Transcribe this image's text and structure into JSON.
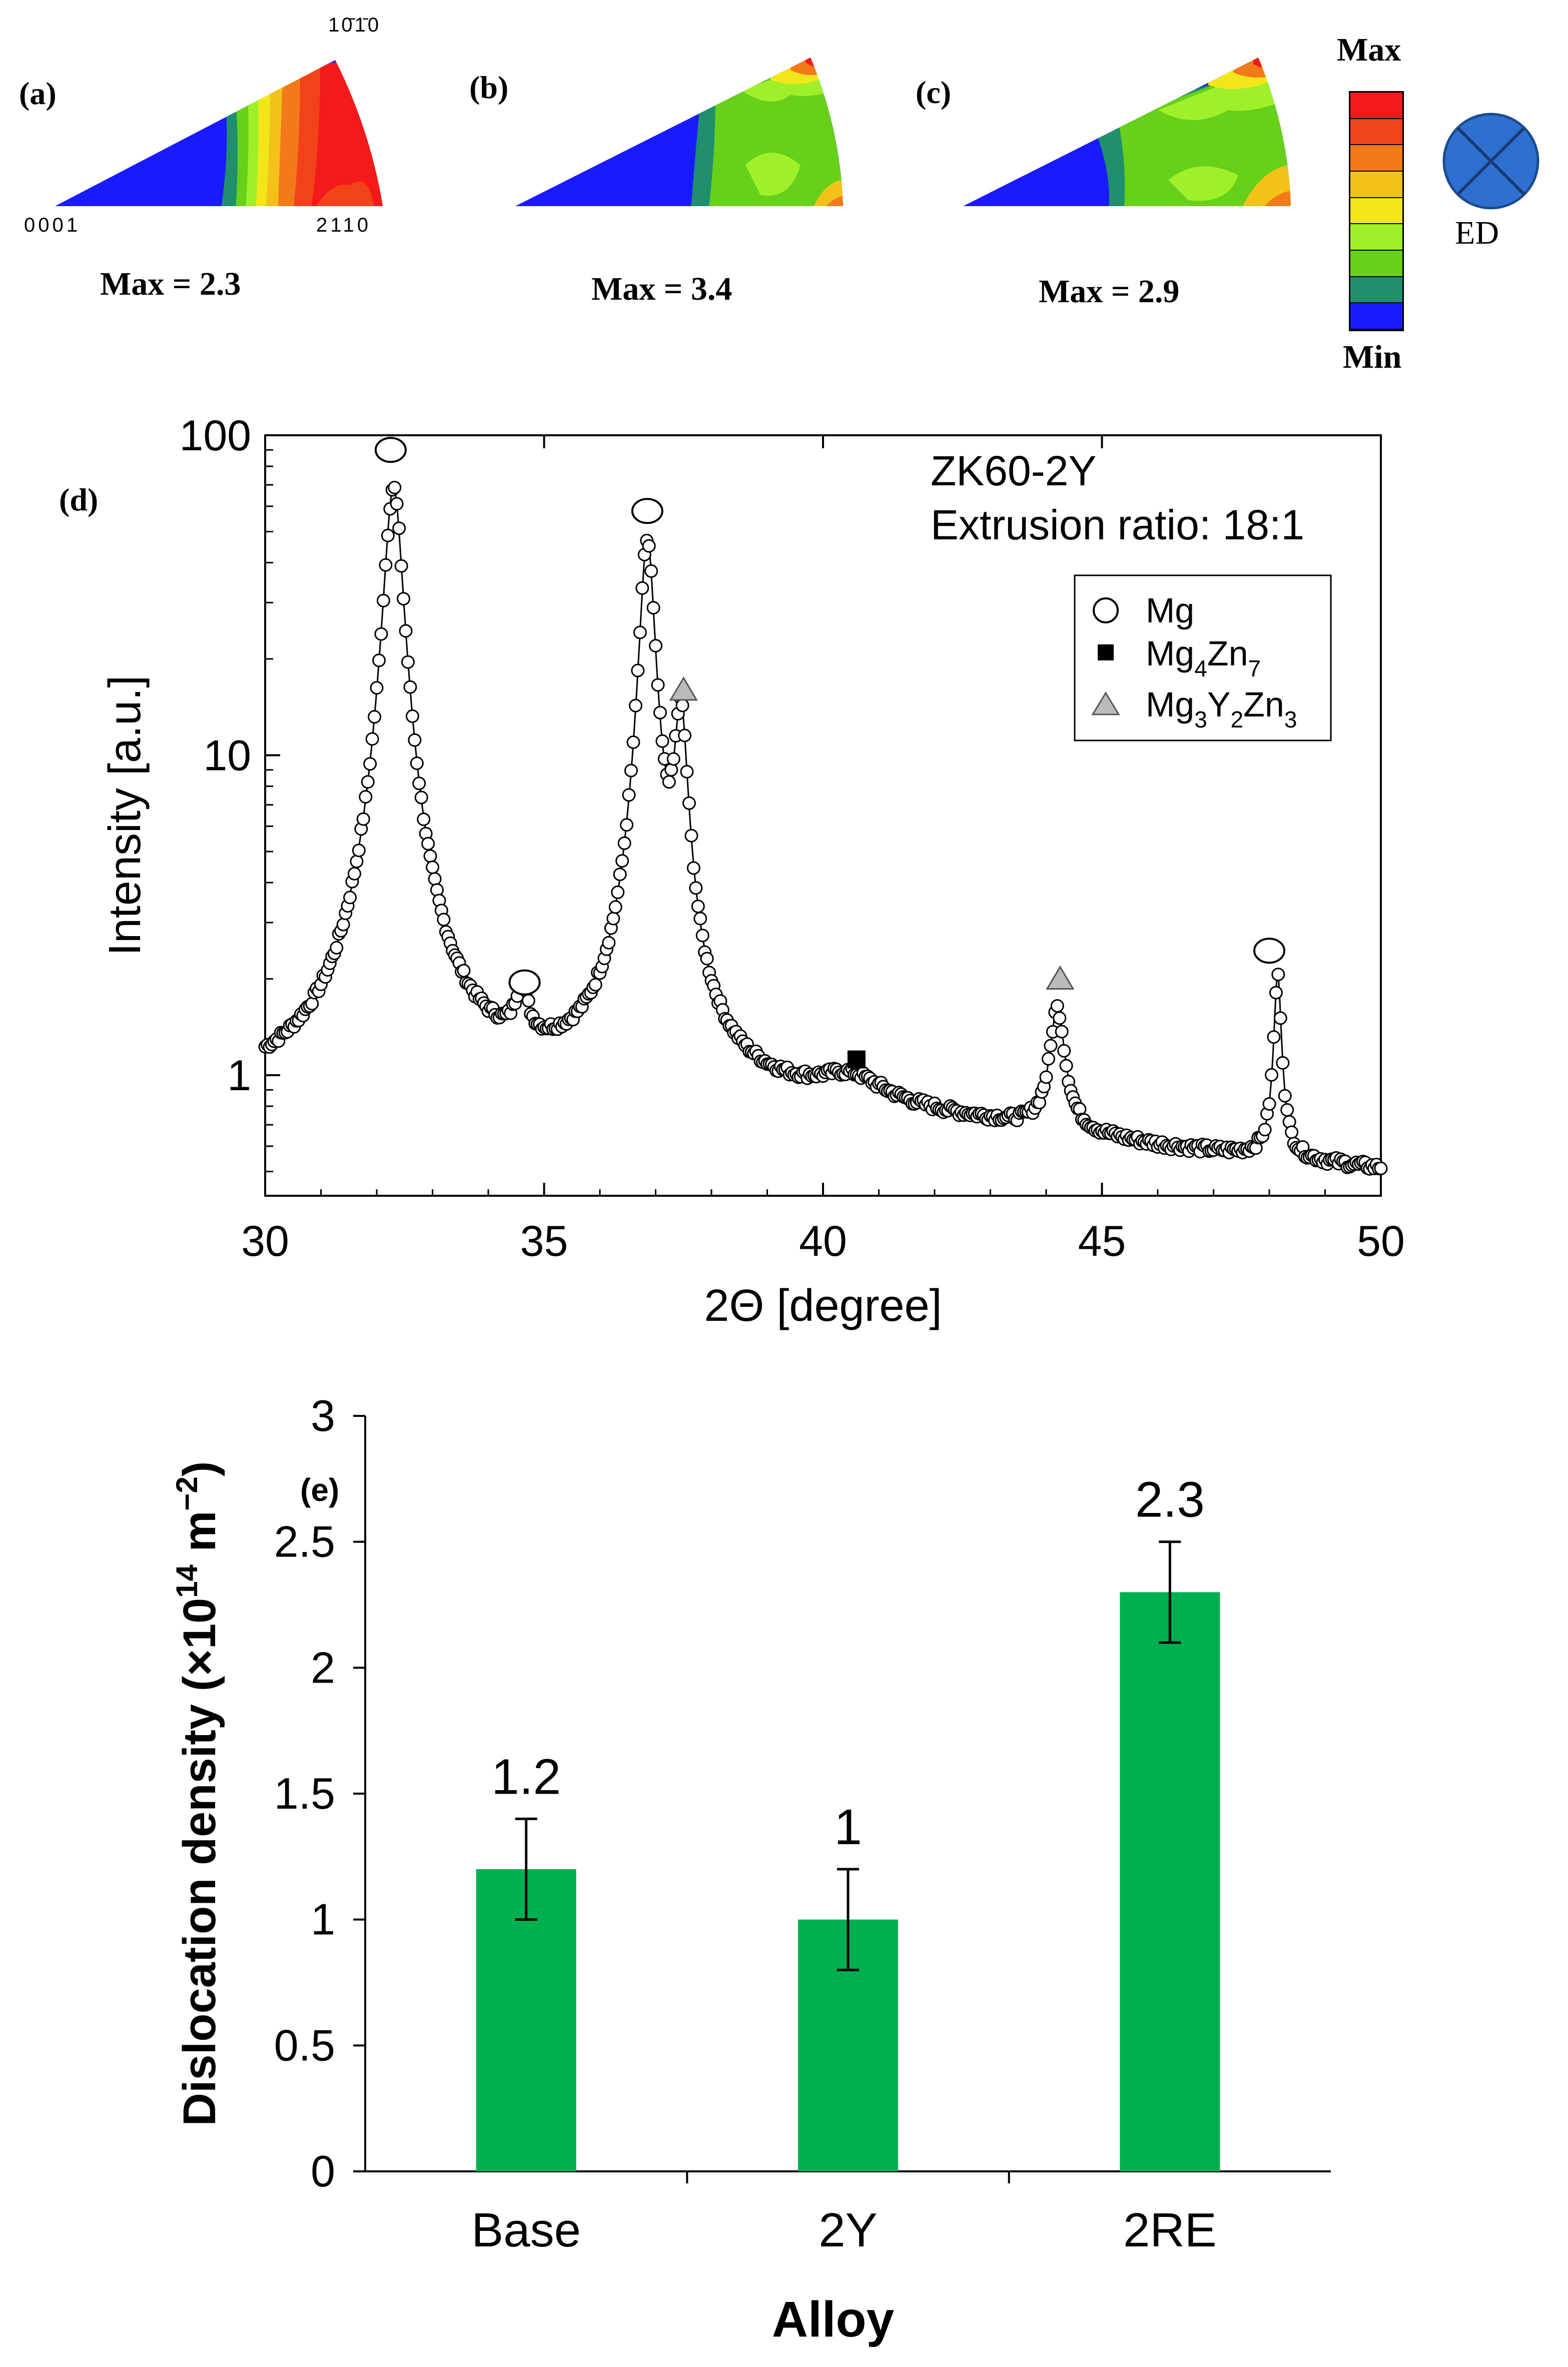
{
  "colors": {
    "blue": "#1a1aff",
    "teal": "#1f8f6e",
    "green": "#66e01a",
    "lightgreen": "#8ff02a",
    "yellow": "#f2e61a",
    "orange": "#f2a21a",
    "darkorange": "#f26a1a",
    "red": "#f21a1a",
    "bar_green": "#00b050",
    "ed_blue": "#2e6fd0"
  },
  "ipf": {
    "corner_top": "10̄1̄0",
    "corner_top_plain": "1010",
    "corner_left": "0001",
    "corner_right": "2110",
    "panels": [
      {
        "label": "(a)",
        "max_text": "Max = 2.3"
      },
      {
        "label": "(b)",
        "max_text": "Max = 3.4"
      },
      {
        "label": "(c)",
        "max_text": "Max = 2.9"
      }
    ],
    "legend": {
      "max": "Max",
      "min": "Min",
      "colors": [
        "#f21a1a",
        "#f2421a",
        "#f27a1a",
        "#f2c21a",
        "#f2e61a",
        "#9ff02a",
        "#66d01a",
        "#1f8f6e",
        "#1a1aff"
      ]
    },
    "ed_label": "ED"
  },
  "chart_data": [
    {
      "type": "line",
      "panel_label": "(d)",
      "annotation_1": "ZK60-2Y",
      "annotation_2": "Extrusion ratio: 18:1",
      "xlabel": "2Θ [degree]",
      "ylabel": "Intensity [a.u.]",
      "xlim": [
        30,
        50
      ],
      "ylim": [
        0.42,
        100
      ],
      "log_y": true,
      "x_ticks": [
        "30",
        "35",
        "40",
        "45",
        "50"
      ],
      "y_ticks": [
        "1",
        "10",
        "100"
      ],
      "legend": [
        {
          "marker": "circle",
          "name": "Mg"
        },
        {
          "marker": "square",
          "name": "Mg4Zn7"
        },
        {
          "marker": "triangle",
          "name": "Mg3Y2Zn3"
        }
      ],
      "peaks": [
        {
          "x": 32.3,
          "height": 68,
          "width": 0.16,
          "phase": "Mg"
        },
        {
          "x": 34.6,
          "height": 0.6,
          "width": 0.12,
          "phase": "Mg"
        },
        {
          "x": 36.85,
          "height": 46,
          "width": 0.13,
          "phase": "Mg"
        },
        {
          "x": 37.45,
          "height": 12,
          "width": 0.12,
          "phase": "Mg3Y2Zn3"
        },
        {
          "x": 40.5,
          "height": 0.17,
          "width": 0.7,
          "phase": "Mg4Zn7"
        },
        {
          "x": 44.2,
          "height": 0.95,
          "width": 0.14,
          "phase": "Mg3Y2Zn3"
        },
        {
          "x": 48.15,
          "height": 1.5,
          "width": 0.07,
          "phase": "Mg"
        }
      ],
      "baseline": [
        [
          30,
          0.88
        ],
        [
          33,
          0.9
        ],
        [
          36,
          0.87
        ],
        [
          39,
          0.79
        ],
        [
          43,
          0.68
        ],
        [
          46,
          0.58
        ],
        [
          50,
          0.5
        ]
      ],
      "markers": [
        {
          "x": 32.25,
          "y": 90,
          "symbol": "circle"
        },
        {
          "x": 34.65,
          "y": 1.95,
          "symbol": "circle"
        },
        {
          "x": 36.85,
          "y": 58,
          "symbol": "circle"
        },
        {
          "x": 37.5,
          "y": 16,
          "symbol": "triangle"
        },
        {
          "x": 40.6,
          "y": 1.12,
          "symbol": "square"
        },
        {
          "x": 44.25,
          "y": 2.0,
          "symbol": "triangle"
        },
        {
          "x": 48.0,
          "y": 2.45,
          "symbol": "circle"
        }
      ]
    },
    {
      "type": "bar",
      "panel_label": "(e)",
      "categories": [
        "Base",
        "2Y",
        "2RE"
      ],
      "values": [
        1.2,
        1.0,
        2.3
      ],
      "errors": [
        0.2,
        0.2,
        0.2
      ],
      "value_labels": [
        "1.2",
        "1",
        "2.3"
      ],
      "xlabel": "Alloy",
      "ylabel_main": "Dislocation density (×10",
      "ylabel_sup1": "14",
      "ylabel_mid": " m",
      "ylabel_sup2": "−2",
      "ylabel_end": ")",
      "ylim": [
        0,
        3
      ],
      "y_ticks": [
        "0",
        "0.5",
        "1",
        "1.5",
        "2",
        "2.5",
        "3"
      ]
    }
  ]
}
